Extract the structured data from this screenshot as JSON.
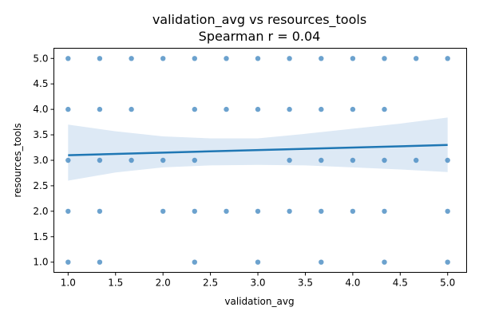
{
  "chart_data": {
    "type": "scatter",
    "title": "validation_avg vs resources_tools",
    "subtitle": "Spearman r = 0.04",
    "xlabel": "validation_avg",
    "ylabel": "resources_tools",
    "xlim": [
      0.85,
      5.2
    ],
    "ylim": [
      0.8,
      5.2
    ],
    "xticks": [
      "1.0",
      "1.5",
      "2.0",
      "2.5",
      "3.0",
      "3.5",
      "4.0",
      "4.5",
      "5.0"
    ],
    "yticks": [
      "1.0",
      "1.5",
      "2.0",
      "2.5",
      "3.0",
      "3.5",
      "4.0",
      "4.5",
      "5.0"
    ],
    "grid": false,
    "legend": false,
    "point_color": "#3b83bd",
    "line_color": "#1f77b4",
    "band_color": "#c6dbef",
    "points": [
      [
        1.0,
        5.0
      ],
      [
        1.333,
        5.0
      ],
      [
        1.667,
        5.0
      ],
      [
        2.0,
        5.0
      ],
      [
        2.333,
        5.0
      ],
      [
        2.667,
        5.0
      ],
      [
        3.0,
        5.0
      ],
      [
        3.333,
        5.0
      ],
      [
        3.667,
        5.0
      ],
      [
        4.0,
        5.0
      ],
      [
        4.333,
        5.0
      ],
      [
        4.667,
        5.0
      ],
      [
        5.0,
        5.0
      ],
      [
        1.0,
        4.0
      ],
      [
        1.333,
        4.0
      ],
      [
        1.667,
        4.0
      ],
      [
        2.333,
        4.0
      ],
      [
        2.667,
        4.0
      ],
      [
        3.0,
        4.0
      ],
      [
        3.333,
        4.0
      ],
      [
        3.667,
        4.0
      ],
      [
        4.0,
        4.0
      ],
      [
        4.333,
        4.0
      ],
      [
        1.0,
        3.0
      ],
      [
        1.333,
        3.0
      ],
      [
        1.667,
        3.0
      ],
      [
        2.0,
        3.0
      ],
      [
        2.333,
        3.0
      ],
      [
        3.333,
        3.0
      ],
      [
        3.667,
        3.0
      ],
      [
        4.0,
        3.0
      ],
      [
        4.333,
        3.0
      ],
      [
        4.667,
        3.0
      ],
      [
        5.0,
        3.0
      ],
      [
        1.0,
        2.0
      ],
      [
        1.333,
        2.0
      ],
      [
        2.0,
        2.0
      ],
      [
        2.333,
        2.0
      ],
      [
        2.667,
        2.0
      ],
      [
        3.0,
        2.0
      ],
      [
        3.333,
        2.0
      ],
      [
        3.667,
        2.0
      ],
      [
        4.0,
        2.0
      ],
      [
        4.333,
        2.0
      ],
      [
        5.0,
        2.0
      ],
      [
        1.0,
        1.0
      ],
      [
        1.333,
        1.0
      ],
      [
        2.333,
        1.0
      ],
      [
        3.0,
        1.0
      ],
      [
        3.667,
        1.0
      ],
      [
        4.333,
        1.0
      ],
      [
        5.0,
        1.0
      ]
    ],
    "regression": {
      "x": [
        1.0,
        5.0
      ],
      "y": [
        3.1,
        3.3
      ]
    },
    "confidence_band": {
      "x": [
        1.0,
        1.5,
        2.0,
        2.5,
        3.0,
        3.5,
        4.0,
        4.5,
        5.0
      ],
      "lower": [
        2.6,
        2.76,
        2.86,
        2.9,
        2.91,
        2.9,
        2.86,
        2.82,
        2.77
      ],
      "upper": [
        3.7,
        3.57,
        3.47,
        3.43,
        3.43,
        3.52,
        3.62,
        3.72,
        3.84
      ]
    }
  }
}
